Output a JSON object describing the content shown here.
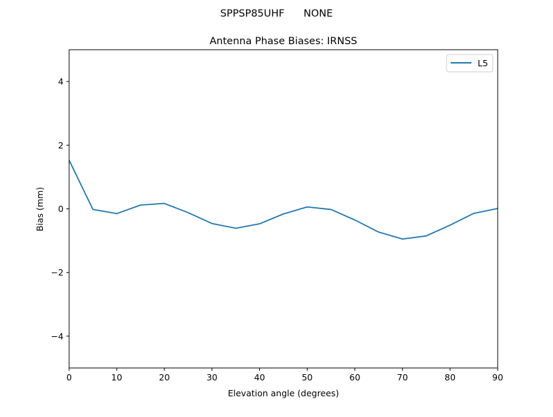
{
  "chart_data": {
    "type": "line",
    "suptitle": "SPPSP85UHF      NONE",
    "title": "Antenna Phase Biases: IRNSS",
    "xlabel": "Elevation angle (degrees)",
    "ylabel": "Bias (mm)",
    "xlim": [
      0,
      90
    ],
    "ylim": [
      -5,
      5
    ],
    "xticks": [
      0,
      10,
      20,
      30,
      40,
      50,
      60,
      70,
      80,
      90
    ],
    "yticks": [
      -4,
      -2,
      0,
      2,
      4
    ],
    "ytick_labels": [
      "−4",
      "−2",
      "0",
      "2",
      "4"
    ],
    "grid": false,
    "legend_position": "top-right",
    "x": [
      0,
      5,
      10,
      15,
      20,
      25,
      30,
      35,
      40,
      45,
      50,
      55,
      60,
      65,
      70,
      75,
      80,
      85,
      90
    ],
    "series": [
      {
        "name": "L5",
        "color": "#1f77b4",
        "values": [
          1.53,
          -0.02,
          -0.15,
          0.12,
          0.17,
          -0.12,
          -0.46,
          -0.61,
          -0.47,
          -0.16,
          0.06,
          -0.02,
          -0.35,
          -0.73,
          -0.95,
          -0.85,
          -0.51,
          -0.14,
          0.01
        ]
      }
    ]
  }
}
